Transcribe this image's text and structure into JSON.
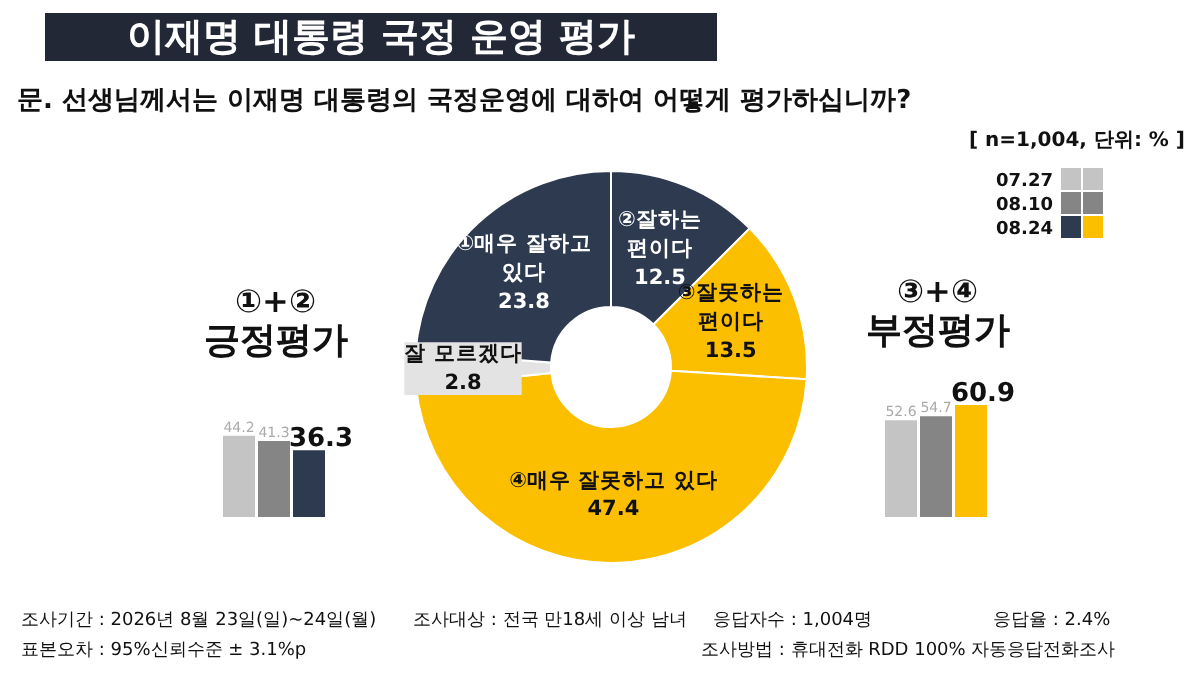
{
  "chart_data": [
    {
      "type": "donut",
      "title": "이재명 대통령 국정 운영 평가",
      "subtitle": "문. 선생님께서는 이재명 대통령의 국정운영에 대하여 어떻게 평가하십니까?",
      "categories": [
        "②잘하는 편이다",
        "③잘못하는 편이다",
        "④매우 잘못하고 있다",
        "잘 모르겠다",
        "①매우 잘하고 있다"
      ],
      "values": [
        12.5,
        13.5,
        47.4,
        2.8,
        23.8
      ],
      "colors": [
        "#2e3a4f",
        "#fcbf00",
        "#fcbf00",
        "#e3e3e3",
        "#2e3a4f"
      ],
      "data_labels": true,
      "annotations": [
        "[ n=1,004, 단위: % ]",
        "조사기간 : 2026년 8월 23일(일)~24일(월)",
        "조사대상 : 전국 만18세 이상 남녀",
        "응답자수 : 1,004명",
        "응답율 : 2.4%",
        "표본오차 : 95%신뢰수준 ± 3.1%p",
        "조사방법 : 휴대전화 RDD 100% 자동응답전화조사"
      ]
    },
    {
      "type": "bar",
      "title": "①+②",
      "subtitle": "긍정평가",
      "categories": [
        null
      ],
      "data_labels": true,
      "legend": "top right",
      "series": [
        {
          "name": "07.27",
          "color": "#c4c4c4",
          "values": [
            44.2
          ]
        },
        {
          "name": "08.10",
          "color": "#858585",
          "values": [
            41.3
          ]
        },
        {
          "name": "08.24",
          "color": "#2e3a4f",
          "values": [
            36.3
          ]
        }
      ]
    },
    {
      "type": "bar",
      "title": "③+④",
      "subtitle": "부정평가",
      "categories": [
        null
      ],
      "data_labels": true,
      "legend": "top right",
      "series": [
        {
          "name": "07.27",
          "color": "#c4c4c4",
          "values": [
            52.6
          ]
        },
        {
          "name": "08.10",
          "color": "#858585",
          "values": [
            54.7
          ]
        },
        {
          "name": "08.24",
          "color": "#fcbf00",
          "values": [
            60.9
          ]
        }
      ]
    }
  ]
}
